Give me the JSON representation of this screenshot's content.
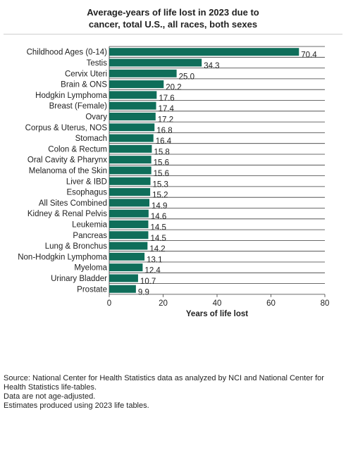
{
  "chart_data": {
    "type": "bar",
    "orientation": "horizontal",
    "title_lines": [
      "Average-years of life lost in 2023 due to",
      "cancer, total U.S., all races, both sexes"
    ],
    "xlabel": "Years of life lost",
    "xlim": [
      0,
      80
    ],
    "xticks": [
      0,
      20,
      40,
      60,
      80
    ],
    "grid": "horizontal",
    "bar_color": "#0f6e5a",
    "categories": [
      "Childhood Ages (0-14)",
      "Testis",
      "Cervix Uteri",
      "Brain & ONS",
      "Hodgkin Lymphoma",
      "Breast (Female)",
      "Ovary",
      "Corpus & Uterus, NOS",
      "Stomach",
      "Colon & Rectum",
      "Oral Cavity & Pharynx",
      "Melanoma of the Skin",
      "Liver & IBD",
      "Esophagus",
      "All Sites Combined",
      "Kidney & Renal Pelvis",
      "Leukemia",
      "Pancreas",
      "Lung & Bronchus",
      "Non-Hodgkin Lymphoma",
      "Myeloma",
      "Urinary Bladder",
      "Prostate"
    ],
    "values": [
      70.4,
      34.3,
      25.0,
      20.2,
      17.6,
      17.4,
      17.2,
      16.8,
      16.4,
      15.8,
      15.6,
      15.6,
      15.3,
      15.2,
      14.9,
      14.6,
      14.5,
      14.5,
      14.2,
      13.1,
      12.4,
      10.7,
      9.9
    ],
    "value_labels": [
      "70.4",
      "34.3",
      "25.0",
      "20.2",
      "17.6",
      "17.4",
      "17.2",
      "16.8",
      "16.4",
      "15.8",
      "15.6",
      "15.6",
      "15.3",
      "15.2",
      "14.9",
      "14.6",
      "14.5",
      "14.5",
      "14.2",
      "13.1",
      "12.4",
      "10.7",
      "9.9"
    ]
  },
  "notes": [
    "Source: National Center for Health Statistics data as analyzed by NCI and National Center for Health Statistics life-tables.",
    "Data are not age-adjusted.",
    "Estimates produced using 2023 life tables."
  ]
}
